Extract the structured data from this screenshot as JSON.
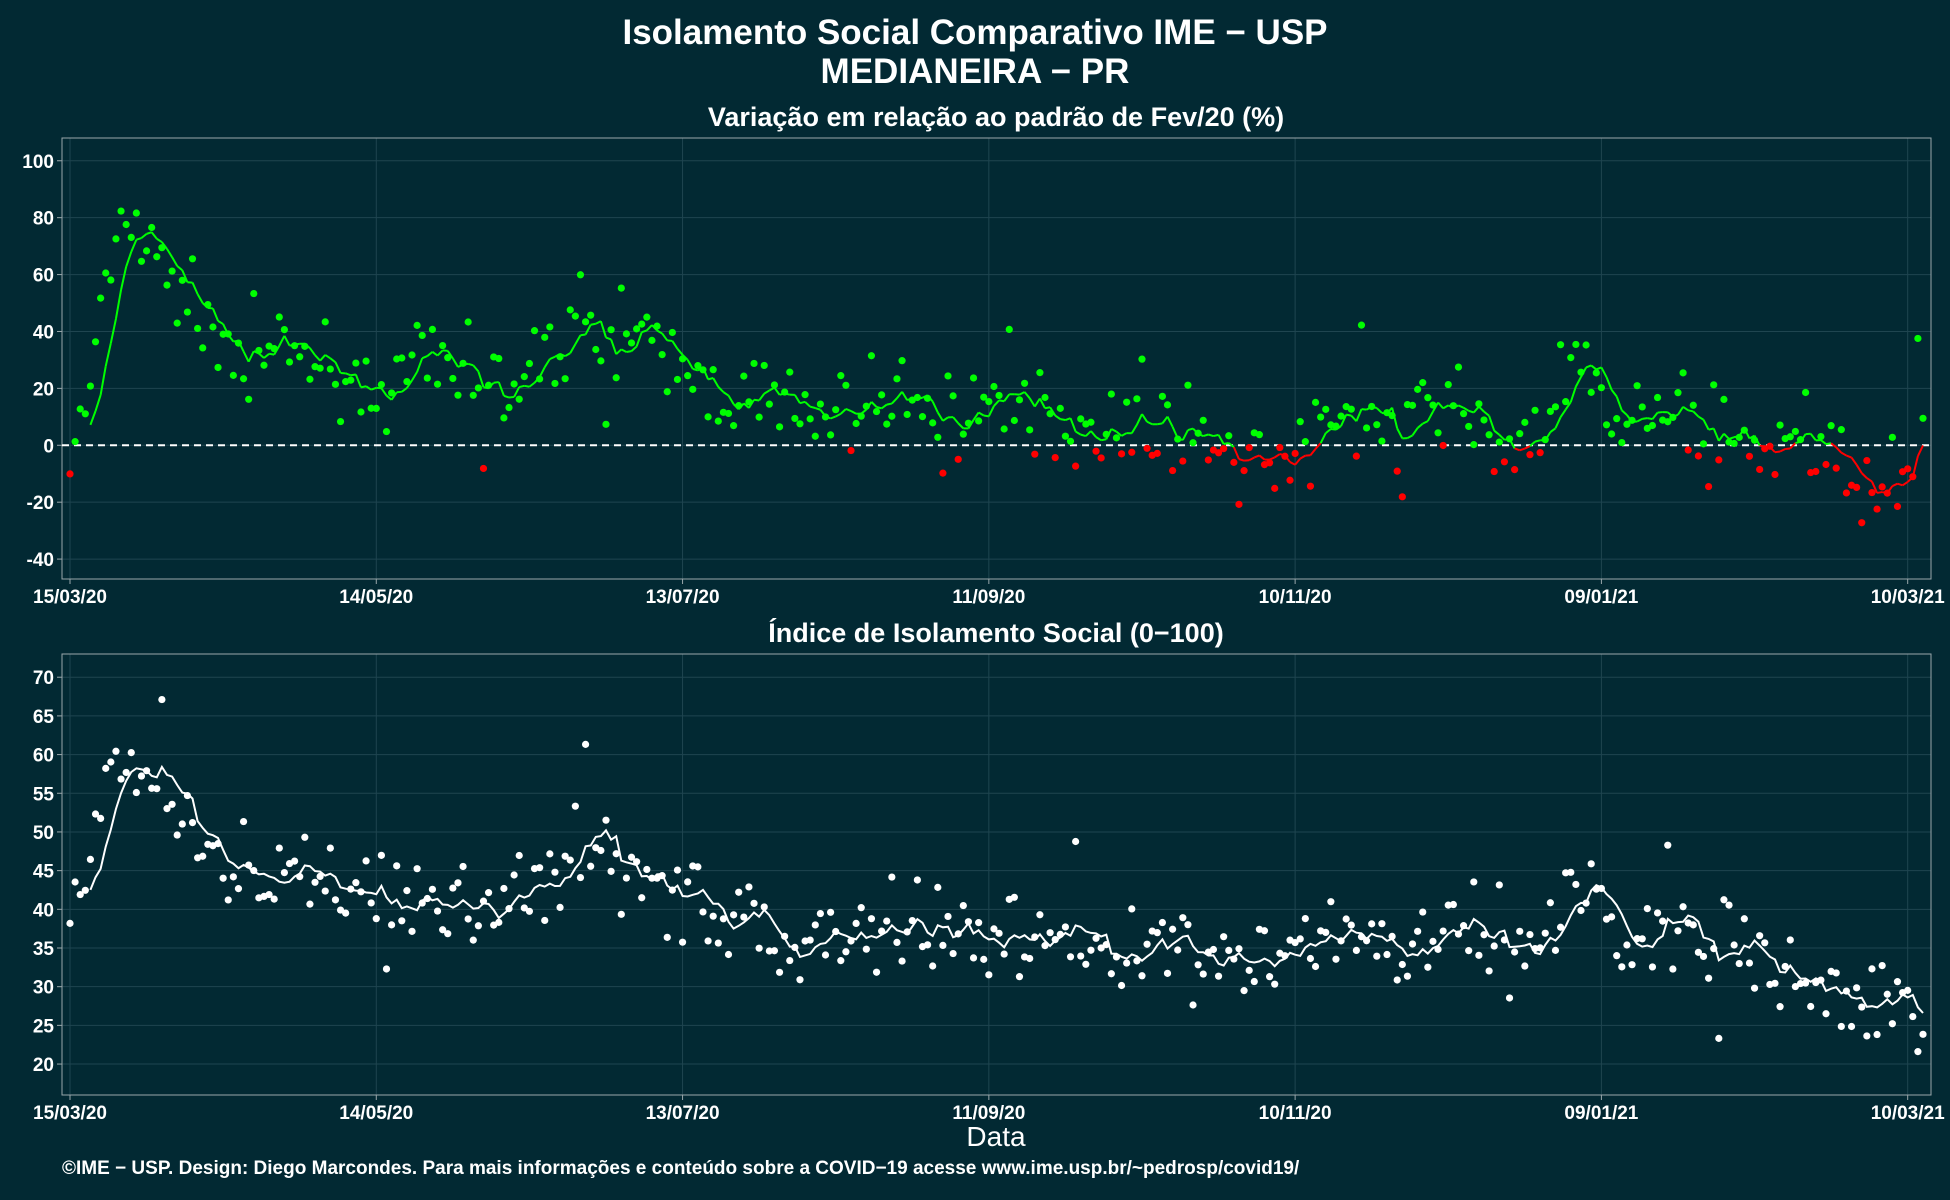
{
  "title": "Isolamento Social Comparativo IME − USP",
  "location": "MEDIANEIRA − PR",
  "xlabel": "Data",
  "footer": "©IME − USP. Design: Diego Marcondes. Para mais informações e conteúdo sobre a COVID−19 acesse www.ime.usp.br/~pedrosp/covid19/",
  "colors": {
    "background": "#022933",
    "positive": "#00ff00",
    "negative": "#ff0000",
    "index": "#ffffff"
  },
  "chart_data": [
    {
      "type": "scatter",
      "title": "Variação em relação ao padrão de Fev/20 (%)",
      "x_start": "15/03/20",
      "x_end": "13/03/21",
      "x_ticks": [
        {
          "label": "15/03/20",
          "day": 0
        },
        {
          "label": "14/05/20",
          "day": 60
        },
        {
          "label": "13/07/20",
          "day": 120
        },
        {
          "label": "11/09/20",
          "day": 180
        },
        {
          "label": "10/11/20",
          "day": 240
        },
        {
          "label": "09/01/21",
          "day": 300
        },
        {
          "label": "10/03/21",
          "day": 360
        }
      ],
      "y_ticks": [
        -40,
        -20,
        0,
        20,
        40,
        60,
        80,
        100
      ],
      "ylim": [
        -47,
        108
      ],
      "reference_line": 0,
      "series_note": "points and 7-day moving average; green when ≥ 0, red when < 0",
      "keyframes": [
        {
          "x": "15/03/20",
          "y": -6
        },
        {
          "x": "18/03/20",
          "y": 12
        },
        {
          "x": "25/03/20",
          "y": 80
        },
        {
          "x": "05/04/20",
          "y": 55
        },
        {
          "x": "15/04/20",
          "y": 36
        },
        {
          "x": "30/04/20",
          "y": 33
        },
        {
          "x": "14/05/20",
          "y": 20
        },
        {
          "x": "25/05/20",
          "y": 27
        },
        {
          "x": "10/06/20",
          "y": 19
        },
        {
          "x": "22/06/20",
          "y": 44
        },
        {
          "x": "05/07/20",
          "y": 33
        },
        {
          "x": "20/07/20",
          "y": 20
        },
        {
          "x": "05/08/20",
          "y": 10
        },
        {
          "x": "20/08/20",
          "y": 16
        },
        {
          "x": "11/09/20",
          "y": 12
        },
        {
          "x": "01/10/20",
          "y": 7
        },
        {
          "x": "20/10/20",
          "y": 5
        },
        {
          "x": "10/11/20",
          "y": -5
        },
        {
          "x": "20/11/20",
          "y": 13
        },
        {
          "x": "01/12/20",
          "y": 3
        },
        {
          "x": "10/12/20",
          "y": 18
        },
        {
          "x": "20/12/20",
          "y": -2
        },
        {
          "x": "28/12/20",
          "y": 5
        },
        {
          "x": "04/01/21",
          "y": 30
        },
        {
          "x": "14/01/21",
          "y": 8
        },
        {
          "x": "29/01/21",
          "y": 10
        },
        {
          "x": "13/02/21",
          "y": -3
        },
        {
          "x": "18/02/21",
          "y": 2
        },
        {
          "x": "25/02/21",
          "y": -16
        },
        {
          "x": "03/03/21",
          "y": -12
        },
        {
          "x": "10/03/21",
          "y": -8
        },
        {
          "x": "13/03/21",
          "y": 12
        }
      ]
    },
    {
      "type": "scatter",
      "title": "Índice de Isolamento Social (0−100)",
      "x_start": "15/03/20",
      "x_end": "13/03/21",
      "x_ticks": [
        {
          "label": "15/03/20",
          "day": 0
        },
        {
          "label": "14/05/20",
          "day": 60
        },
        {
          "label": "13/07/20",
          "day": 120
        },
        {
          "label": "11/09/20",
          "day": 180
        },
        {
          "label": "10/11/20",
          "day": 240
        },
        {
          "label": "09/01/21",
          "day": 300
        },
        {
          "label": "10/03/21",
          "day": 360
        }
      ],
      "y_ticks": [
        20,
        25,
        30,
        35,
        40,
        45,
        50,
        55,
        60,
        65,
        70
      ],
      "ylim": [
        16,
        73
      ],
      "series_note": "points and 7-day moving average (white)",
      "keyframes": [
        {
          "x": "15/03/20",
          "y": 38
        },
        {
          "x": "18/03/20",
          "y": 40
        },
        {
          "x": "22/03/20",
          "y": 59
        },
        {
          "x": "01/04/20",
          "y": 54
        },
        {
          "x": "10/04/20",
          "y": 48
        },
        {
          "x": "20/04/20",
          "y": 45
        },
        {
          "x": "01/05/20",
          "y": 44
        },
        {
          "x": "14/05/20",
          "y": 40
        },
        {
          "x": "25/05/20",
          "y": 42
        },
        {
          "x": "10/06/20",
          "y": 40
        },
        {
          "x": "23/06/20",
          "y": 48
        },
        {
          "x": "05/07/20",
          "y": 43
        },
        {
          "x": "20/07/20",
          "y": 40
        },
        {
          "x": "05/08/20",
          "y": 35
        },
        {
          "x": "20/08/20",
          "y": 38
        },
        {
          "x": "11/09/20",
          "y": 36
        },
        {
          "x": "01/10/20",
          "y": 35
        },
        {
          "x": "20/10/20",
          "y": 34
        },
        {
          "x": "10/11/20",
          "y": 33
        },
        {
          "x": "20/11/20",
          "y": 37
        },
        {
          "x": "01/12/20",
          "y": 34
        },
        {
          "x": "10/12/20",
          "y": 39
        },
        {
          "x": "20/12/20",
          "y": 33
        },
        {
          "x": "28/12/20",
          "y": 35
        },
        {
          "x": "04/01/21",
          "y": 43
        },
        {
          "x": "14/01/21",
          "y": 36
        },
        {
          "x": "29/01/21",
          "y": 36
        },
        {
          "x": "13/02/21",
          "y": 31
        },
        {
          "x": "25/02/21",
          "y": 28
        },
        {
          "x": "10/03/21",
          "y": 31
        },
        {
          "x": "13/03/21",
          "y": 19
        }
      ]
    }
  ]
}
